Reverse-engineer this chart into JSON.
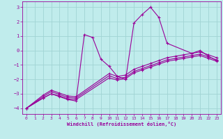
{
  "xlabel": "Windchill (Refroidissement éolien,°C)",
  "bg_color": "#c0ecec",
  "line_color": "#990099",
  "grid_color": "#a0d4d4",
  "xlim": [
    -0.5,
    23.5
  ],
  "ylim": [
    -4.4,
    3.4
  ],
  "xticks": [
    0,
    1,
    2,
    3,
    4,
    5,
    6,
    7,
    8,
    9,
    10,
    11,
    12,
    13,
    14,
    15,
    16,
    17,
    18,
    19,
    20,
    21,
    22,
    23
  ],
  "yticks": [
    -4,
    -3,
    -2,
    -1,
    0,
    1,
    2,
    3
  ],
  "curves": [
    {
      "x": [
        0,
        2,
        3,
        4,
        5,
        6,
        7,
        8,
        9,
        10,
        11,
        12,
        13,
        14,
        15,
        16,
        17,
        20,
        21,
        22,
        23
      ],
      "y": [
        -4.0,
        -3.3,
        -3.0,
        -3.2,
        -3.4,
        -3.5,
        1.1,
        0.9,
        -0.6,
        -1.1,
        -1.8,
        -2.0,
        1.9,
        2.5,
        3.0,
        2.3,
        0.5,
        -0.2,
        0.0,
        -0.4,
        -0.7
      ]
    },
    {
      "x": [
        0,
        2,
        3,
        4,
        5,
        6,
        10,
        11,
        12,
        13,
        14,
        15,
        16,
        17,
        18,
        19,
        20,
        21,
        22,
        23
      ],
      "y": [
        -4.0,
        -3.3,
        -3.0,
        -3.15,
        -3.35,
        -3.4,
        -1.9,
        -2.05,
        -1.95,
        -1.55,
        -1.35,
        -1.15,
        -0.95,
        -0.75,
        -0.65,
        -0.55,
        -0.45,
        -0.35,
        -0.55,
        -0.75
      ]
    },
    {
      "x": [
        0,
        2,
        3,
        4,
        5,
        6,
        10,
        11,
        12,
        13,
        14,
        15,
        16,
        17,
        18,
        19,
        20,
        21,
        22,
        23
      ],
      "y": [
        -4.0,
        -3.2,
        -2.85,
        -3.05,
        -3.25,
        -3.3,
        -1.75,
        -1.95,
        -1.85,
        -1.45,
        -1.25,
        -1.05,
        -0.85,
        -0.65,
        -0.55,
        -0.45,
        -0.35,
        -0.25,
        -0.45,
        -0.65
      ]
    },
    {
      "x": [
        0,
        2,
        3,
        4,
        5,
        6,
        10,
        11,
        12,
        13,
        14,
        15,
        16,
        17,
        18,
        19,
        20,
        21,
        22,
        23
      ],
      "y": [
        -4.0,
        -3.1,
        -2.75,
        -2.95,
        -3.15,
        -3.2,
        -1.6,
        -1.8,
        -1.7,
        -1.3,
        -1.1,
        -0.9,
        -0.7,
        -0.5,
        -0.4,
        -0.3,
        -0.2,
        -0.1,
        -0.3,
        -0.5
      ]
    }
  ]
}
